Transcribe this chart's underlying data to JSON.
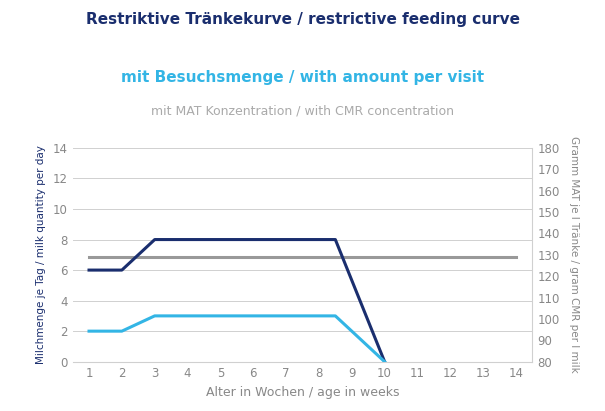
{
  "title": "Restriktive Tränkekurve / restrictive feeding curve",
  "subtitle1": "mit Besuchsmenge / with amount per visit",
  "subtitle2": "mit MAT Konzentration / with CMR concentration",
  "xlabel": "Alter in Wochen / age in weeks",
  "ylabel_left": "Milchmenge je Tag / milk quantity per day",
  "ylabel_right": "Gramm MAT je l Tränke / gram CMR per l milk",
  "dark_blue_x": [
    1,
    2,
    3,
    6,
    8.5,
    10
  ],
  "dark_blue_y": [
    6,
    6,
    8,
    8,
    8,
    0
  ],
  "dark_blue_color": "#1a2e6e",
  "cyan_x": [
    1,
    2,
    3,
    8.5,
    10
  ],
  "cyan_y": [
    2,
    2,
    3,
    3,
    0
  ],
  "cyan_color": "#33b5e5",
  "gray_x": [
    1,
    14
  ],
  "gray_y": [
    6.875,
    6.875
  ],
  "gray_color": "#999999",
  "xlim": [
    0.5,
    14.5
  ],
  "ylim_left": [
    0,
    14
  ],
  "ylim_right": [
    80,
    180
  ],
  "xticks": [
    1,
    2,
    3,
    4,
    5,
    6,
    7,
    8,
    9,
    10,
    11,
    12,
    13,
    14
  ],
  "yticks_left": [
    0,
    2,
    4,
    6,
    8,
    10,
    12,
    14
  ],
  "yticks_right": [
    80,
    90,
    100,
    110,
    120,
    130,
    140,
    150,
    160,
    170,
    180
  ],
  "title_color": "#1a2e6e",
  "subtitle1_color": "#33b5e5",
  "subtitle2_color": "#aaaaaa",
  "title_fontsize": 11,
  "subtitle1_fontsize": 11,
  "subtitle2_fontsize": 9,
  "axis_label_color": "#888888",
  "tick_color": "#888888",
  "bg_color": "#ffffff",
  "grid_color": "#d0d0d0",
  "line_width": 2.2
}
